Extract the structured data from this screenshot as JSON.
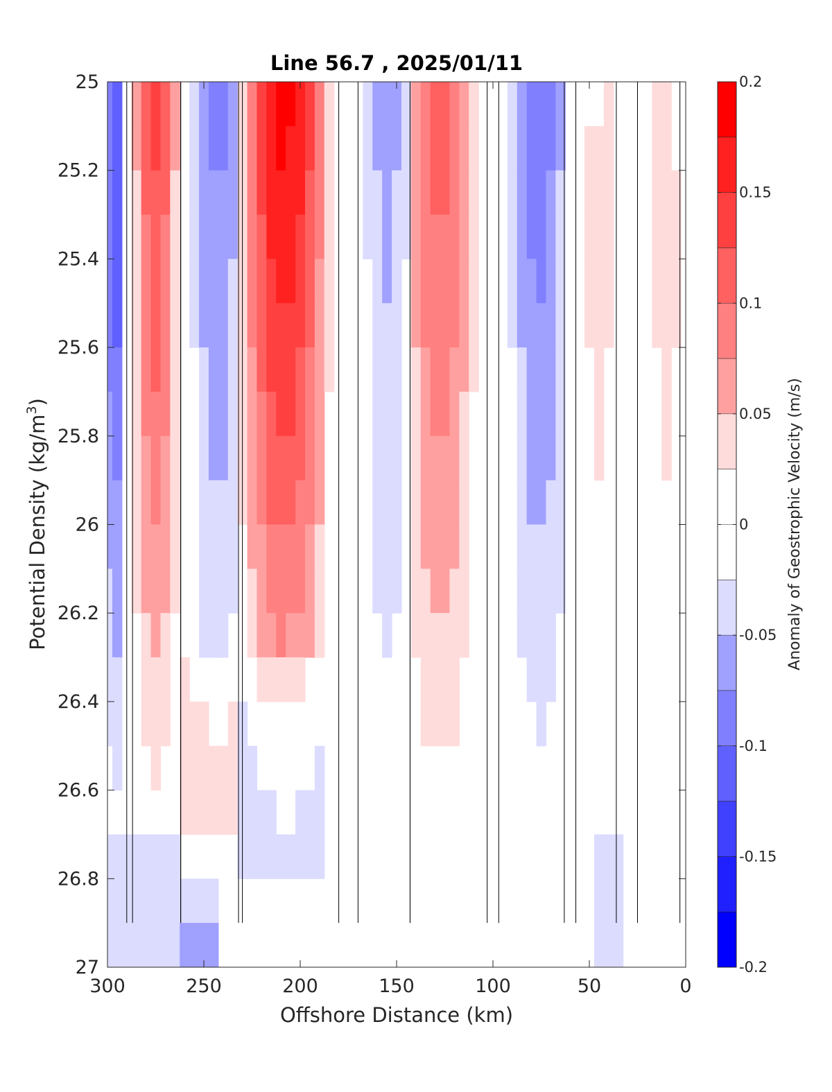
{
  "chart_data": {
    "type": "heatmap",
    "title": "Line 56.7 , 2025/01/11",
    "xlabel": "Offshore Distance (km)",
    "ylabel_base": "Potential Density (kg/m",
    "ylabel_sup": "3",
    "ylabel_end": ")",
    "colorbar_label": "Anomaly of Geostrophic Velocity (m/s)",
    "xlim": [
      300,
      0
    ],
    "x_reversed": true,
    "ylim": [
      25,
      27
    ],
    "y_reversed": true,
    "x_ticks": [
      300,
      250,
      200,
      150,
      100,
      50,
      0
    ],
    "x_tick_labels": [
      "300",
      "250",
      "200",
      "150",
      "100",
      "50",
      "0"
    ],
    "y_ticks": [
      25,
      25.2,
      25.4,
      25.6,
      25.8,
      26,
      26.2,
      26.4,
      26.6,
      26.8,
      27
    ],
    "y_tick_labels": [
      "25",
      "25.2",
      "25.4",
      "25.6",
      "25.8",
      "26",
      "26.2",
      "26.4",
      "26.6",
      "26.8",
      "27"
    ],
    "colorbar": {
      "clim": [
        -0.2,
        0.2
      ],
      "ticks": [
        0.2,
        0.15,
        0.1,
        0.05,
        0,
        -0.05,
        -0.1,
        -0.15,
        -0.2
      ],
      "tick_labels": [
        "0.2",
        "0.15",
        "0.1",
        "0.05",
        "0",
        "-0.05",
        "-0.1",
        "-0.15",
        "-0.2"
      ],
      "levels_top_to_bottom": [
        "#ff0000",
        "#ff2020",
        "#ff4040",
        "#ff6060",
        "#ff8080",
        "#ffa0a0",
        "#ffdcdc",
        "#ffffff",
        "#ffffff",
        "#dcdcff",
        "#a0a0ff",
        "#8080ff",
        "#6060ff",
        "#4040ff",
        "#2020ff",
        "#0000ff"
      ]
    },
    "zero_contour_level": 0,
    "field": {
      "x": [
        300,
        295,
        290,
        285,
        280,
        275,
        270,
        265,
        260,
        255,
        250,
        245,
        240,
        235,
        230,
        225,
        220,
        215,
        210,
        205,
        200,
        195,
        190,
        185,
        180,
        175,
        170,
        165,
        160,
        155,
        150,
        145,
        140,
        135,
        130,
        125,
        120,
        115,
        110,
        105,
        100,
        95,
        90,
        85,
        80,
        75,
        70,
        65,
        60,
        55,
        50,
        45,
        40,
        35,
        30,
        25,
        20,
        15,
        10,
        5,
        0
      ],
      "data_range_y": [
        25,
        26.9
      ],
      "note_rows": "rows are potential density 25.0 to 26.9 in steps of 0.1; values in m/s; null = no data",
      "profiles": [
        {
          "x_range": [
            300,
            290
          ],
          "center": 297,
          "peak": -0.14
        },
        {
          "x_range": [
            287,
            262
          ],
          "center": 275,
          "peak": 0.13
        },
        {
          "x_range": [
            262,
            232
          ],
          "center": 243,
          "peak": -0.08
        },
        {
          "x_range": [
            230,
            180
          ],
          "center": 208,
          "peak": 0.18
        },
        {
          "x_range": [
            170,
            143
          ],
          "center": 155,
          "peak": -0.06
        },
        {
          "x_range": [
            143,
            103
          ],
          "center": 127,
          "peak": 0.11
        },
        {
          "x_range": [
            97,
            63
          ],
          "center": 76,
          "peak": -0.09
        },
        {
          "x_range": [
            57,
            36
          ],
          "center": 45,
          "peak": 0.04
        },
        {
          "x_range": [
            25,
            3
          ],
          "center": 10,
          "peak": 0.04
        }
      ]
    }
  }
}
